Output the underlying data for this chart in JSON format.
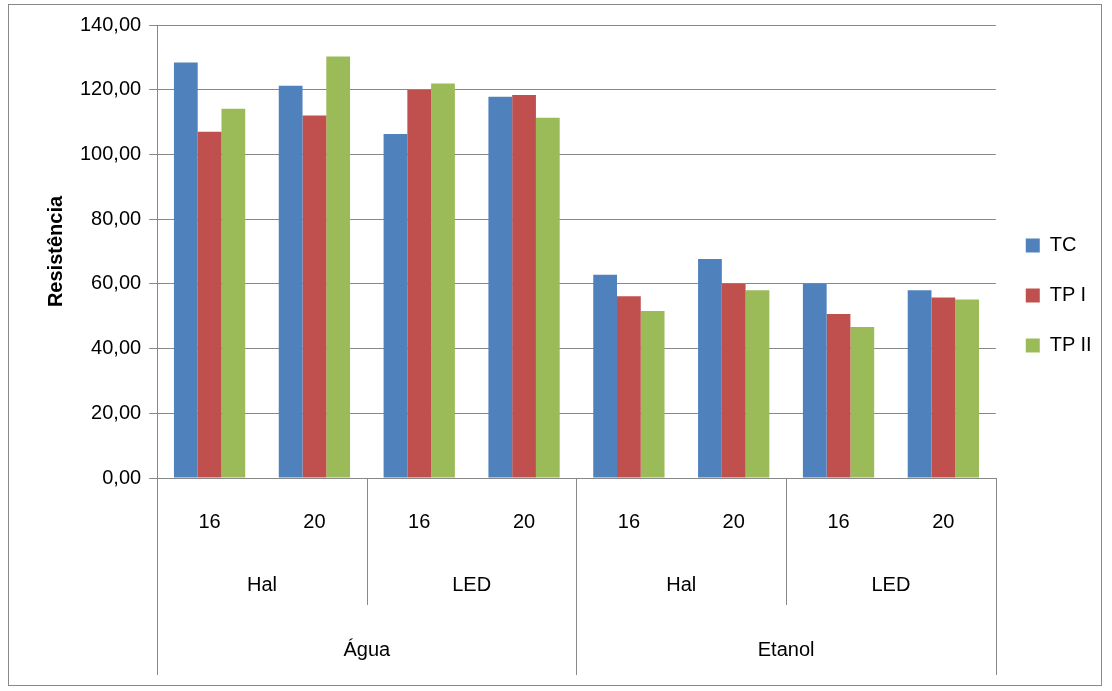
{
  "chart_data": {
    "type": "bar",
    "ylabel": "Resistência",
    "categories": [
      "16",
      "20",
      "16",
      "20",
      "16",
      "20",
      "16",
      "20"
    ],
    "annotations": [
      "Hal",
      "LED",
      "Hal",
      "LED",
      "Água",
      "Etanol"
    ],
    "series": [
      {
        "name": "TC",
        "color": "#4f81bd",
        "values": [
          128.4,
          121.2,
          106.3,
          117.8,
          62.8,
          67.7,
          60,
          58
        ]
      },
      {
        "name": "TP I",
        "color": "#c0504d",
        "values": [
          107,
          112,
          119.9,
          118.4,
          56.2,
          60,
          50.7,
          55.8
        ]
      },
      {
        "name": "TP II",
        "color": "#9bbb59",
        "values": [
          114.1,
          130.3,
          121.9,
          111.3,
          51.6,
          58,
          46.7,
          55.2
        ]
      }
    ],
    "ylim": [
      0,
      140
    ],
    "yticks": [
      {
        "value": 0,
        "label": "0,00"
      },
      {
        "value": 20,
        "label": "20,00"
      },
      {
        "value": 40,
        "label": "40,00"
      },
      {
        "value": 60,
        "label": "60,00"
      },
      {
        "value": 80,
        "label": "80,00"
      },
      {
        "value": 100,
        "label": "100,00"
      },
      {
        "value": 120,
        "label": "120,00"
      },
      {
        "value": 140,
        "label": "140,00"
      }
    ],
    "grid": "y",
    "legend": "right"
  }
}
